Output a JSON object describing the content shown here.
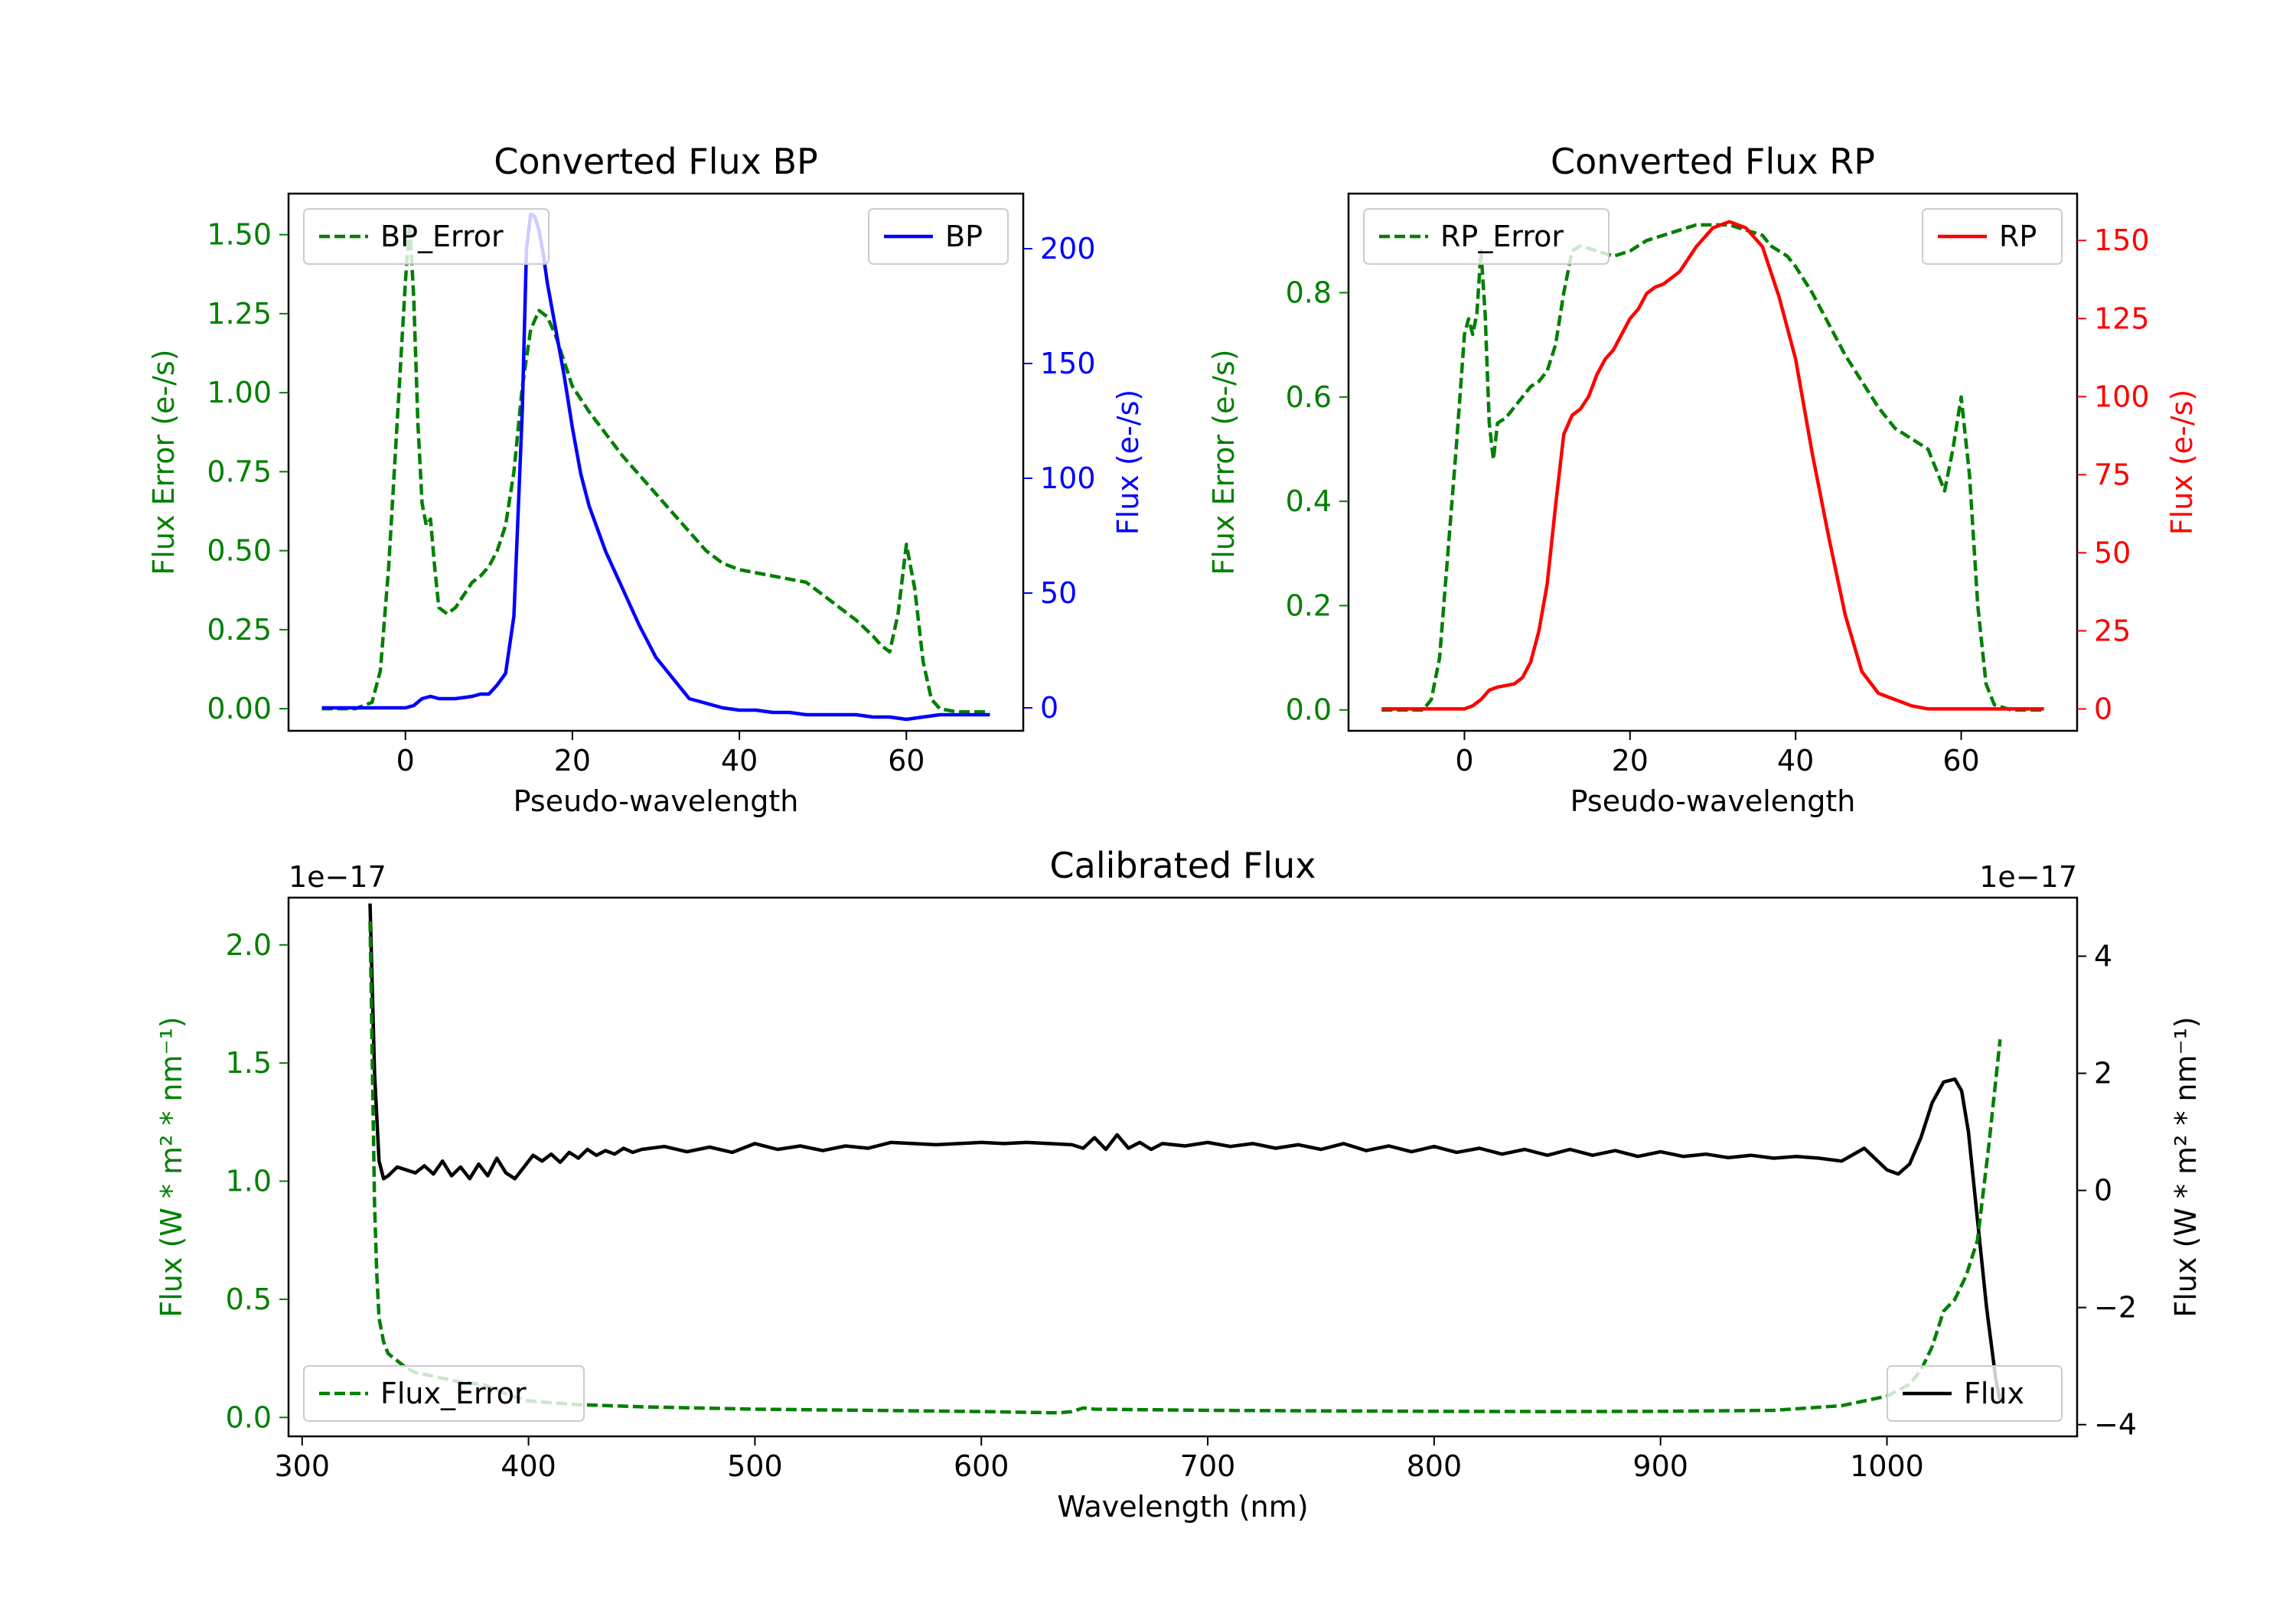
{
  "chart_data": [
    {
      "id": "bp",
      "type": "line",
      "title": "Converted Flux BP",
      "xlabel": "Pseudo-wavelength",
      "ylabel_left": "Flux Error (e-/s)",
      "ylabel_right": "Flux (e-/s)",
      "xlim": [
        -14,
        74
      ],
      "ylim_left": [
        -0.07,
        1.63
      ],
      "ylim_right": [
        -10,
        224
      ],
      "xticks": [
        0,
        20,
        40,
        60
      ],
      "yticks_left": [
        0.0,
        0.25,
        0.5,
        0.75,
        1.0,
        1.25,
        1.5
      ],
      "yticks_left_labels": [
        "0.00",
        "0.25",
        "0.50",
        "0.75",
        "1.00",
        "1.25",
        "1.50"
      ],
      "yticks_right": [
        0,
        50,
        100,
        150,
        200
      ],
      "color_left": "#008000",
      "color_right": "#0000ff",
      "legend_left": "top-left",
      "legend_right": "top-right",
      "series": [
        {
          "name": "BP_Error",
          "axis": "left",
          "style": "dashed",
          "color": "#008000",
          "x": [
            -10,
            -6,
            -4,
            -3,
            -2,
            -1,
            0,
            0.5,
            1,
            1.5,
            2,
            2.5,
            3,
            3.5,
            4,
            5,
            6,
            7,
            8,
            9,
            10,
            11,
            12,
            13,
            14,
            15,
            16,
            17,
            18,
            19,
            20,
            22,
            24,
            26,
            28,
            30,
            32,
            34,
            36,
            38,
            40,
            42,
            44,
            46,
            48,
            50,
            52,
            54,
            56,
            57,
            58,
            59,
            60,
            61,
            62,
            63,
            64,
            66,
            68,
            70
          ],
          "y": [
            0.0,
            0.0,
            0.02,
            0.12,
            0.45,
            0.9,
            1.35,
            1.54,
            1.3,
            0.9,
            0.65,
            0.58,
            0.6,
            0.45,
            0.32,
            0.3,
            0.32,
            0.36,
            0.4,
            0.42,
            0.45,
            0.5,
            0.58,
            0.75,
            1.02,
            1.2,
            1.26,
            1.24,
            1.18,
            1.1,
            1.02,
            0.94,
            0.87,
            0.8,
            0.74,
            0.68,
            0.62,
            0.56,
            0.5,
            0.46,
            0.44,
            0.43,
            0.42,
            0.41,
            0.4,
            0.36,
            0.32,
            0.28,
            0.23,
            0.2,
            0.18,
            0.3,
            0.52,
            0.38,
            0.15,
            0.03,
            0.0,
            -0.01,
            -0.01,
            -0.01
          ]
        },
        {
          "name": "BP",
          "axis": "right",
          "style": "solid",
          "color": "#0000ff",
          "x": [
            -10,
            -4,
            -2,
            0,
            1,
            2,
            3,
            4,
            6,
            8,
            9,
            10,
            11,
            12,
            13,
            14,
            14.5,
            15,
            15.5,
            16,
            16.5,
            17,
            18,
            19,
            20,
            21,
            22,
            24,
            26,
            28,
            30,
            32,
            34,
            36,
            38,
            40,
            42,
            44,
            46,
            48,
            50,
            52,
            54,
            56,
            58,
            60,
            62,
            64,
            66,
            68,
            70
          ],
          "y": [
            0,
            0,
            0,
            0,
            1,
            4,
            5,
            4,
            4,
            5,
            6,
            6,
            10,
            15,
            40,
            130,
            200,
            215,
            214,
            208,
            198,
            185,
            165,
            145,
            122,
            102,
            88,
            68,
            52,
            36,
            22,
            13,
            4,
            2,
            0,
            -1,
            -1,
            -2,
            -2,
            -3,
            -3,
            -3,
            -3,
            -4,
            -4,
            -5,
            -4,
            -3,
            -3,
            -3,
            -3
          ]
        }
      ]
    },
    {
      "id": "rp",
      "type": "line",
      "title": "Converted Flux RP",
      "xlabel": "Pseudo-wavelength",
      "ylabel_left": "Flux Error (e-/s)",
      "ylabel_right": "Flux (e-/s)",
      "xlim": [
        -14,
        74
      ],
      "ylim_left": [
        -0.04,
        0.99
      ],
      "ylim_right": [
        -7,
        165
      ],
      "xticks": [
        0,
        20,
        40,
        60
      ],
      "yticks_left": [
        0.0,
        0.2,
        0.4,
        0.6,
        0.8
      ],
      "yticks_left_labels": [
        "0.0",
        "0.2",
        "0.4",
        "0.6",
        "0.8"
      ],
      "yticks_right": [
        0,
        25,
        50,
        75,
        100,
        125,
        150
      ],
      "color_left": "#008000",
      "color_right": "#ff0000",
      "legend_left": "top-left",
      "legend_right": "top-right",
      "series": [
        {
          "name": "RP_Error",
          "axis": "left",
          "style": "dashed",
          "color": "#008000",
          "x": [
            -10,
            -5,
            -4,
            -3,
            -2,
            -1,
            0,
            0.5,
            1,
            1.5,
            2,
            2.5,
            3,
            3.5,
            4,
            5,
            6,
            7,
            8,
            9,
            10,
            11,
            12,
            13,
            14,
            16,
            18,
            20,
            22,
            24,
            26,
            28,
            30,
            32,
            34,
            36,
            37,
            38,
            39,
            40,
            42,
            44,
            46,
            48,
            50,
            52,
            54,
            56,
            57,
            58,
            59,
            60,
            61,
            62,
            63,
            64,
            66,
            68,
            70
          ],
          "y": [
            0.0,
            0.0,
            0.02,
            0.1,
            0.3,
            0.5,
            0.72,
            0.75,
            0.72,
            0.76,
            0.88,
            0.76,
            0.55,
            0.48,
            0.55,
            0.56,
            0.58,
            0.6,
            0.62,
            0.63,
            0.65,
            0.7,
            0.8,
            0.88,
            0.89,
            0.88,
            0.87,
            0.88,
            0.9,
            0.91,
            0.92,
            0.93,
            0.93,
            0.93,
            0.92,
            0.91,
            0.89,
            0.88,
            0.87,
            0.85,
            0.8,
            0.74,
            0.68,
            0.63,
            0.58,
            0.54,
            0.52,
            0.5,
            0.46,
            0.42,
            0.5,
            0.6,
            0.45,
            0.2,
            0.05,
            0.01,
            0.0,
            0.0,
            0.0
          ]
        },
        {
          "name": "RP",
          "axis": "right",
          "style": "solid",
          "color": "#ff0000",
          "x": [
            -10,
            -2,
            0,
            1,
            2,
            3,
            4,
            6,
            7,
            8,
            9,
            10,
            11,
            12,
            13,
            14,
            15,
            16,
            17,
            18,
            19,
            20,
            21,
            22,
            23,
            24,
            26,
            28,
            30,
            32,
            34,
            36,
            38,
            40,
            42,
            44,
            46,
            48,
            50,
            52,
            54,
            56,
            58,
            60,
            62,
            64,
            66,
            68,
            70
          ],
          "y": [
            0,
            0,
            0,
            1,
            3,
            6,
            7,
            8,
            10,
            15,
            25,
            40,
            65,
            88,
            94,
            96,
            100,
            107,
            112,
            115,
            120,
            125,
            128,
            133,
            135,
            136,
            140,
            148,
            154,
            156,
            154,
            148,
            132,
            112,
            82,
            55,
            30,
            12,
            5,
            3,
            1,
            0,
            0,
            0,
            0,
            0,
            0,
            0,
            0
          ]
        }
      ]
    },
    {
      "id": "cal",
      "type": "line",
      "title": "Calibrated Flux",
      "xlabel": "Wavelength (nm)",
      "ylabel_left": "Flux (W * m² * nm⁻¹)",
      "ylabel_right": "Flux (W * m² * nm⁻¹)",
      "offset_left": "1e−17",
      "offset_right": "1e−17",
      "xlim": [
        294,
        1084
      ],
      "ylim_left": [
        -0.08,
        2.2
      ],
      "ylim_right": [
        -4.2,
        5.0
      ],
      "xticks": [
        300,
        400,
        500,
        600,
        700,
        800,
        900,
        1000
      ],
      "yticks_left": [
        0.0,
        0.5,
        1.0,
        1.5,
        2.0
      ],
      "yticks_left_labels": [
        "0.0",
        "0.5",
        "1.0",
        "1.5",
        "2.0"
      ],
      "yticks_right": [
        -4,
        -2,
        0,
        2,
        4
      ],
      "yticks_right_labels": [
        "−4",
        "−2",
        "0",
        "2",
        "4"
      ],
      "color_left": "#008000",
      "color_right": "#000000",
      "legend_left": "bottom-left",
      "legend_right": "bottom-right",
      "series": [
        {
          "name": "Flux",
          "axis": "right",
          "style": "solid",
          "color": "#000000",
          "x": [
            330,
            332,
            334,
            336,
            338,
            342,
            346,
            350,
            354,
            358,
            362,
            366,
            370,
            374,
            378,
            382,
            386,
            390,
            394,
            398,
            402,
            406,
            410,
            414,
            418,
            422,
            426,
            430,
            434,
            438,
            442,
            446,
            450,
            460,
            470,
            480,
            490,
            500,
            510,
            520,
            530,
            540,
            550,
            560,
            570,
            580,
            590,
            600,
            610,
            620,
            630,
            640,
            645,
            650,
            655,
            660,
            665,
            670,
            675,
            680,
            690,
            700,
            710,
            720,
            730,
            740,
            750,
            760,
            770,
            780,
            790,
            800,
            810,
            820,
            830,
            840,
            850,
            860,
            870,
            880,
            890,
            900,
            910,
            920,
            930,
            940,
            950,
            960,
            970,
            980,
            990,
            1000,
            1005,
            1010,
            1015,
            1020,
            1025,
            1030,
            1033,
            1036,
            1040,
            1044,
            1048,
            1050
          ],
          "y": [
            4.9,
            2.0,
            0.5,
            0.2,
            0.25,
            0.4,
            0.35,
            0.3,
            0.42,
            0.28,
            0.5,
            0.25,
            0.4,
            0.2,
            0.45,
            0.25,
            0.55,
            0.3,
            0.2,
            0.4,
            0.6,
            0.5,
            0.62,
            0.48,
            0.65,
            0.55,
            0.7,
            0.6,
            0.68,
            0.62,
            0.72,
            0.65,
            0.7,
            0.75,
            0.66,
            0.74,
            0.65,
            0.8,
            0.7,
            0.76,
            0.68,
            0.76,
            0.72,
            0.82,
            0.8,
            0.78,
            0.8,
            0.82,
            0.8,
            0.82,
            0.8,
            0.78,
            0.72,
            0.9,
            0.7,
            0.95,
            0.72,
            0.82,
            0.7,
            0.8,
            0.76,
            0.82,
            0.75,
            0.8,
            0.72,
            0.78,
            0.7,
            0.8,
            0.68,
            0.76,
            0.66,
            0.75,
            0.65,
            0.72,
            0.62,
            0.7,
            0.6,
            0.7,
            0.6,
            0.68,
            0.58,
            0.66,
            0.58,
            0.62,
            0.56,
            0.6,
            0.55,
            0.58,
            0.55,
            0.5,
            0.72,
            0.35,
            0.28,
            0.45,
            0.9,
            1.5,
            1.85,
            1.9,
            1.7,
            1.0,
            -0.5,
            -2.0,
            -3.2,
            -3.6
          ]
        },
        {
          "name": "Flux_Error",
          "axis": "left",
          "style": "dashed",
          "color": "#008000",
          "x": [
            330,
            331,
            332,
            333,
            334,
            336,
            338,
            342,
            346,
            350,
            360,
            370,
            380,
            390,
            400,
            420,
            450,
            500,
            550,
            600,
            630,
            635,
            640,
            645,
            650,
            700,
            750,
            800,
            850,
            900,
            950,
            980,
            1000,
            1010,
            1015,
            1020,
            1025,
            1030,
            1035,
            1040,
            1045,
            1050
          ],
          "y": [
            2.1,
            1.5,
            0.9,
            0.6,
            0.42,
            0.32,
            0.27,
            0.24,
            0.21,
            0.19,
            0.17,
            0.15,
            0.14,
            0.1,
            0.07,
            0.055,
            0.045,
            0.035,
            0.03,
            0.025,
            0.02,
            0.02,
            0.025,
            0.04,
            0.035,
            0.03,
            0.028,
            0.026,
            0.025,
            0.026,
            0.03,
            0.05,
            0.09,
            0.14,
            0.2,
            0.3,
            0.45,
            0.5,
            0.6,
            0.75,
            1.15,
            1.6
          ]
        }
      ]
    }
  ]
}
